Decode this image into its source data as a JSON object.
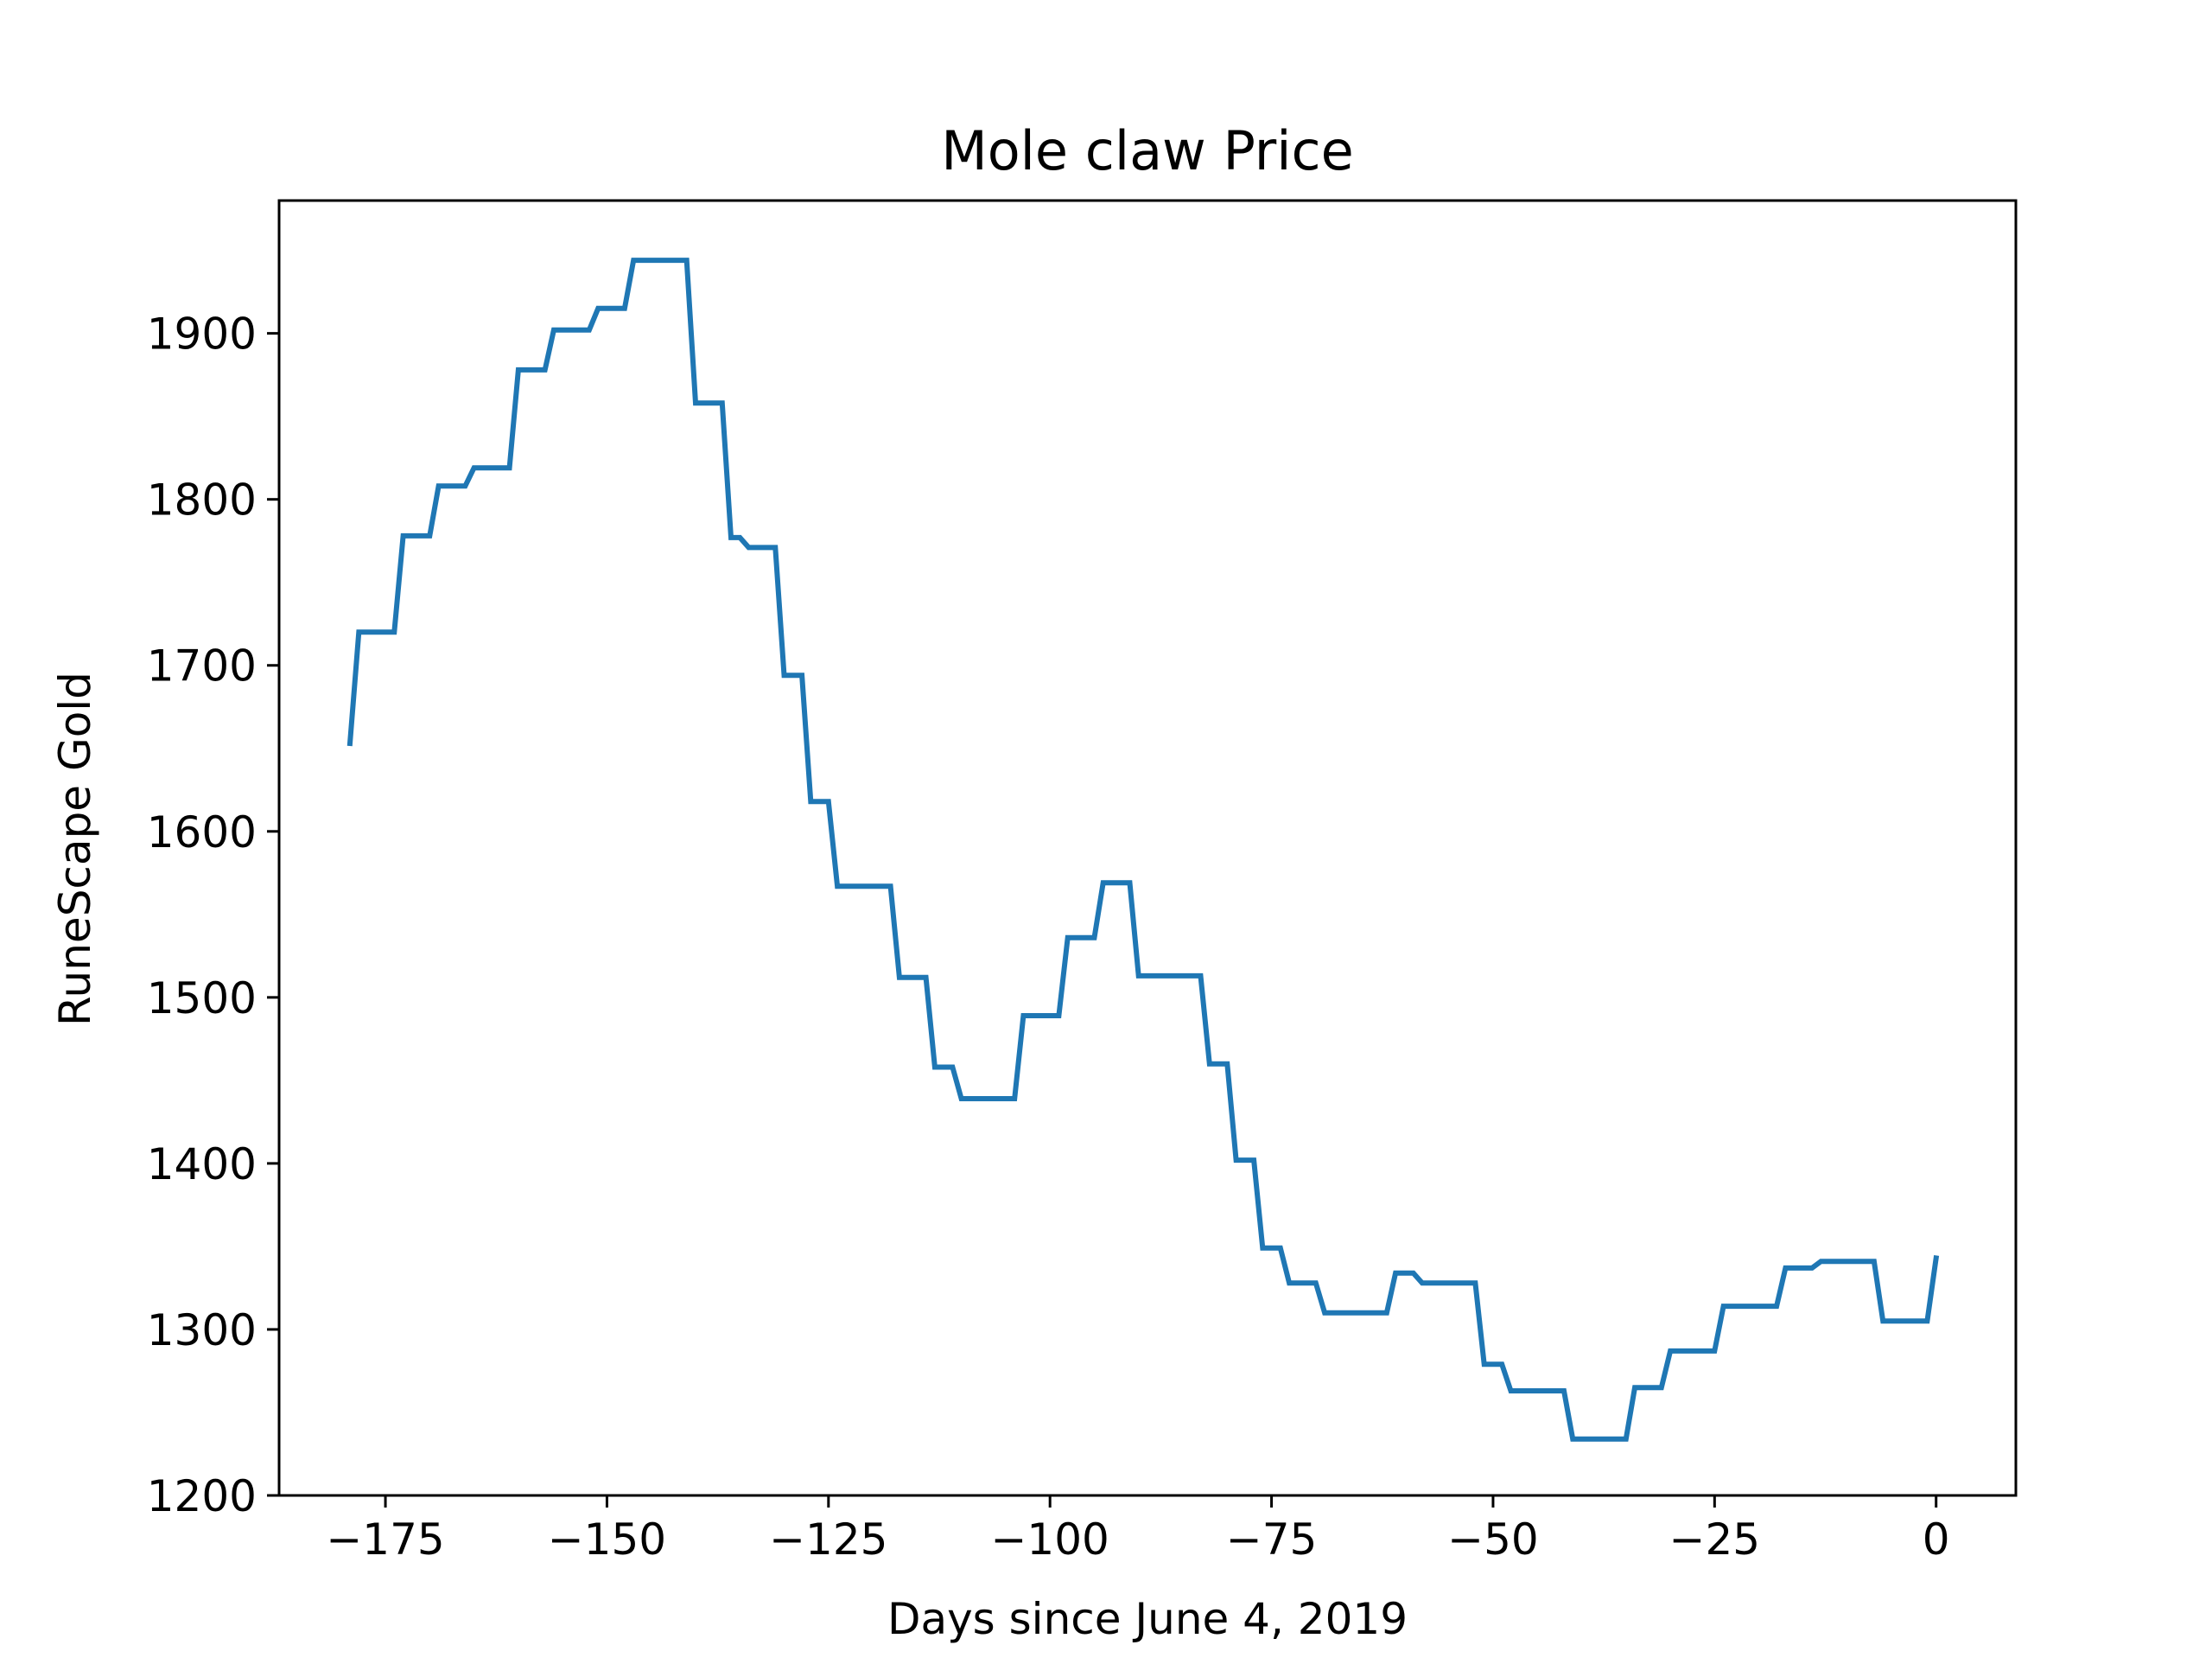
{
  "chart_data": {
    "type": "line",
    "title": "Mole claw Price",
    "xlabel": "Days since June 4, 2019",
    "ylabel": "RuneScape Gold",
    "xlim": [
      -187,
      9
    ],
    "ylim": [
      1200,
      1980
    ],
    "x_ticks": [
      -175,
      -150,
      -125,
      -100,
      -75,
      -50,
      -25,
      0
    ],
    "x_tick_labels": [
      "−175",
      "−150",
      "−125",
      "−100",
      "−75",
      "−50",
      "−25",
      "0"
    ],
    "y_ticks": [
      1200,
      1300,
      1400,
      1500,
      1600,
      1700,
      1800,
      1900
    ],
    "y_tick_labels": [
      "1200",
      "1300",
      "1400",
      "1500",
      "1600",
      "1700",
      "1800",
      "1900"
    ],
    "grid": false,
    "series": [
      {
        "color": "#1f77b4",
        "x": [
          -179,
          -178,
          -174,
          -173,
          -170,
          -169,
          -166,
          -165,
          -161,
          -160,
          -157,
          -156,
          -152,
          -151,
          -148,
          -147,
          -144,
          -143,
          -141,
          -140,
          -137,
          -136,
          -135,
          -134,
          -131,
          -130,
          -128,
          -127,
          -125,
          -124,
          -122,
          -121,
          -118,
          -117,
          -114,
          -113,
          -111,
          -110,
          -108,
          -107,
          -104,
          -103,
          -99,
          -98,
          -95,
          -94,
          -91,
          -90,
          -87,
          -86,
          -83,
          -82,
          -80,
          -79,
          -77,
          -76,
          -74,
          -73,
          -70,
          -69,
          -66,
          -65,
          -62,
          -61,
          -59,
          -58,
          -56,
          -55,
          -52,
          -51,
          -49,
          -48,
          -45,
          -44,
          -42,
          -41,
          -38,
          -37,
          -35,
          -34,
          -31,
          -30,
          -28,
          -27,
          -25,
          -24,
          -21,
          -20,
          -18,
          -17,
          -14,
          -13,
          -11,
          -10,
          -7,
          -6,
          -4,
          -3,
          -1,
          0
        ],
        "y": [
          1653,
          1720,
          1720,
          1778,
          1778,
          1808,
          1808,
          1819,
          1819,
          1878,
          1878,
          1902,
          1902,
          1915,
          1915,
          1944,
          1944,
          1944,
          1944,
          1858,
          1858,
          1777,
          1777,
          1771,
          1771,
          1694,
          1694,
          1618,
          1618,
          1567,
          1567,
          1567,
          1567,
          1512,
          1512,
          1458,
          1458,
          1439,
          1439,
          1439,
          1439,
          1489,
          1489,
          1536,
          1536,
          1569,
          1569,
          1513,
          1513,
          1513,
          1513,
          1460,
          1460,
          1402,
          1402,
          1349,
          1349,
          1328,
          1328,
          1310,
          1310,
          1310,
          1310,
          1334,
          1334,
          1328,
          1328,
          1328,
          1328,
          1279,
          1279,
          1263,
          1263,
          1263,
          1263,
          1234,
          1234,
          1234,
          1234,
          1265,
          1265,
          1287,
          1287,
          1287,
          1287,
          1314,
          1314,
          1314,
          1314,
          1337,
          1337,
          1341,
          1341,
          1341,
          1341,
          1305,
          1305,
          1305,
          1305,
          1343
        ]
      }
    ]
  }
}
